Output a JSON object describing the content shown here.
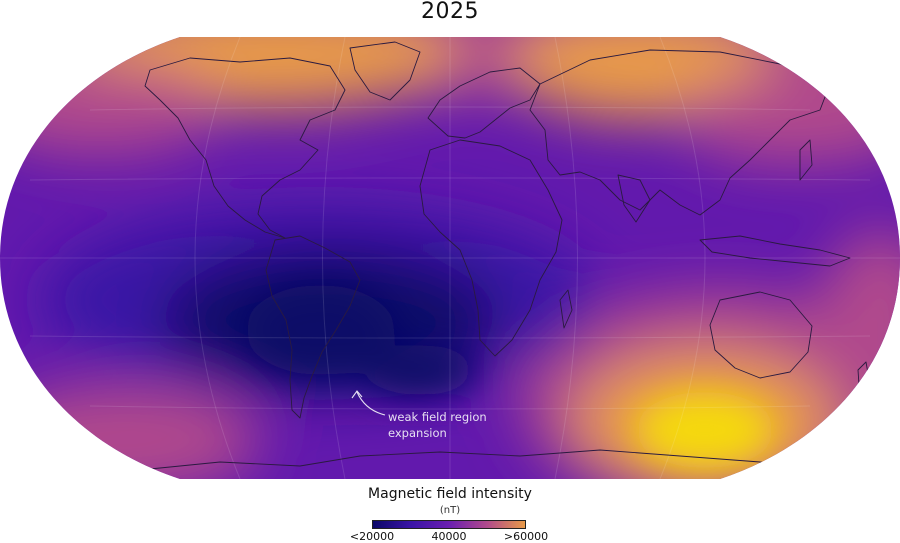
{
  "title": "2025",
  "map": {
    "projection": "world-elliptical",
    "colors": {
      "low": "#0b0868",
      "mid_low": "#3a14a6",
      "mid": "#6a1fb0",
      "mid_high": "#b04a8c",
      "high": "#e89a48",
      "max": "#f5d90e",
      "land_outline": "#2a1a40",
      "ocean_base": "#6219ad"
    },
    "annotations": [
      {
        "line1": "weak field region",
        "line2": "expansion"
      }
    ]
  },
  "legend": {
    "title": "Magnetic field intensity",
    "unit": "(nT)",
    "ticks": [
      {
        "label": "<20000",
        "value": 20000
      },
      {
        "label": "40000",
        "value": 40000
      },
      {
        "label": ">60000",
        "value": 60000
      }
    ],
    "range": [
      20000,
      60000
    ]
  }
}
